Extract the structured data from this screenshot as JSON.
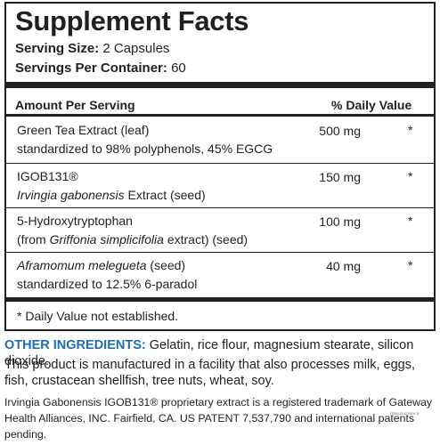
{
  "header": {
    "title": "Supplement Facts"
  },
  "serving": {
    "size_label": "Serving Size:",
    "size_value": "2 Capsules",
    "per_container_label": "Servings Per Container:",
    "per_container_value": "60"
  },
  "table": {
    "amount_header": "Amount Per Serving",
    "dv_header": "% Daily Value",
    "rows": [
      {
        "lines": [
          [
            {
              "text": "Green Tea Extract (leaf)",
              "italic": false
            }
          ],
          [
            {
              "text": "standardized to 98% polyphenols, 45% EGCG",
              "italic": false
            }
          ]
        ],
        "amount": "500 mg",
        "dv": "*"
      },
      {
        "lines": [
          [
            {
              "text": "IGOB131®",
              "italic": false
            }
          ],
          [
            {
              "text": "Irvingia gabonensis",
              "italic": true
            },
            {
              "text": " Extract (seed)",
              "italic": false
            }
          ]
        ],
        "amount": "150 mg",
        "dv": "*"
      },
      {
        "lines": [
          [
            {
              "text": "5-Hydroxytryptophan",
              "italic": false
            }
          ],
          [
            {
              "text": "(from ",
              "italic": false
            },
            {
              "text": "Griffonia simplicifolia",
              "italic": true
            },
            {
              "text": " extract) (seed)",
              "italic": false
            }
          ]
        ],
        "amount": "100 mg",
        "dv": "*"
      },
      {
        "lines": [
          [
            {
              "text": "Aframomum melegueta",
              "italic": true
            },
            {
              "text": " (seed)",
              "italic": false
            }
          ],
          [
            {
              "text": "standardized to 12.5% 6-paradol",
              "italic": false
            }
          ]
        ],
        "amount": "40 mg",
        "dv": "*"
      }
    ],
    "footnote": "* Daily Value not established."
  },
  "other_ingredients": {
    "label": "OTHER INGREDIENTS:",
    "text": " Gelatin, rice flour, magnesium stearate, silicon dioxide."
  },
  "allergen": "This product is manufactured in a facility that also processes milk, eggs, fish, crustacean shellfish, tree nuts, wheat, soy.",
  "trademark": "Irvingia Gabonensis IGOB131® proprietary extract is a registered trademark of Gateway Health Alliances, INC. Fairfield, CA. US PATENT 7,537,790 and international patents pending.",
  "item_code": "ITEM 1142 REV 5"
}
